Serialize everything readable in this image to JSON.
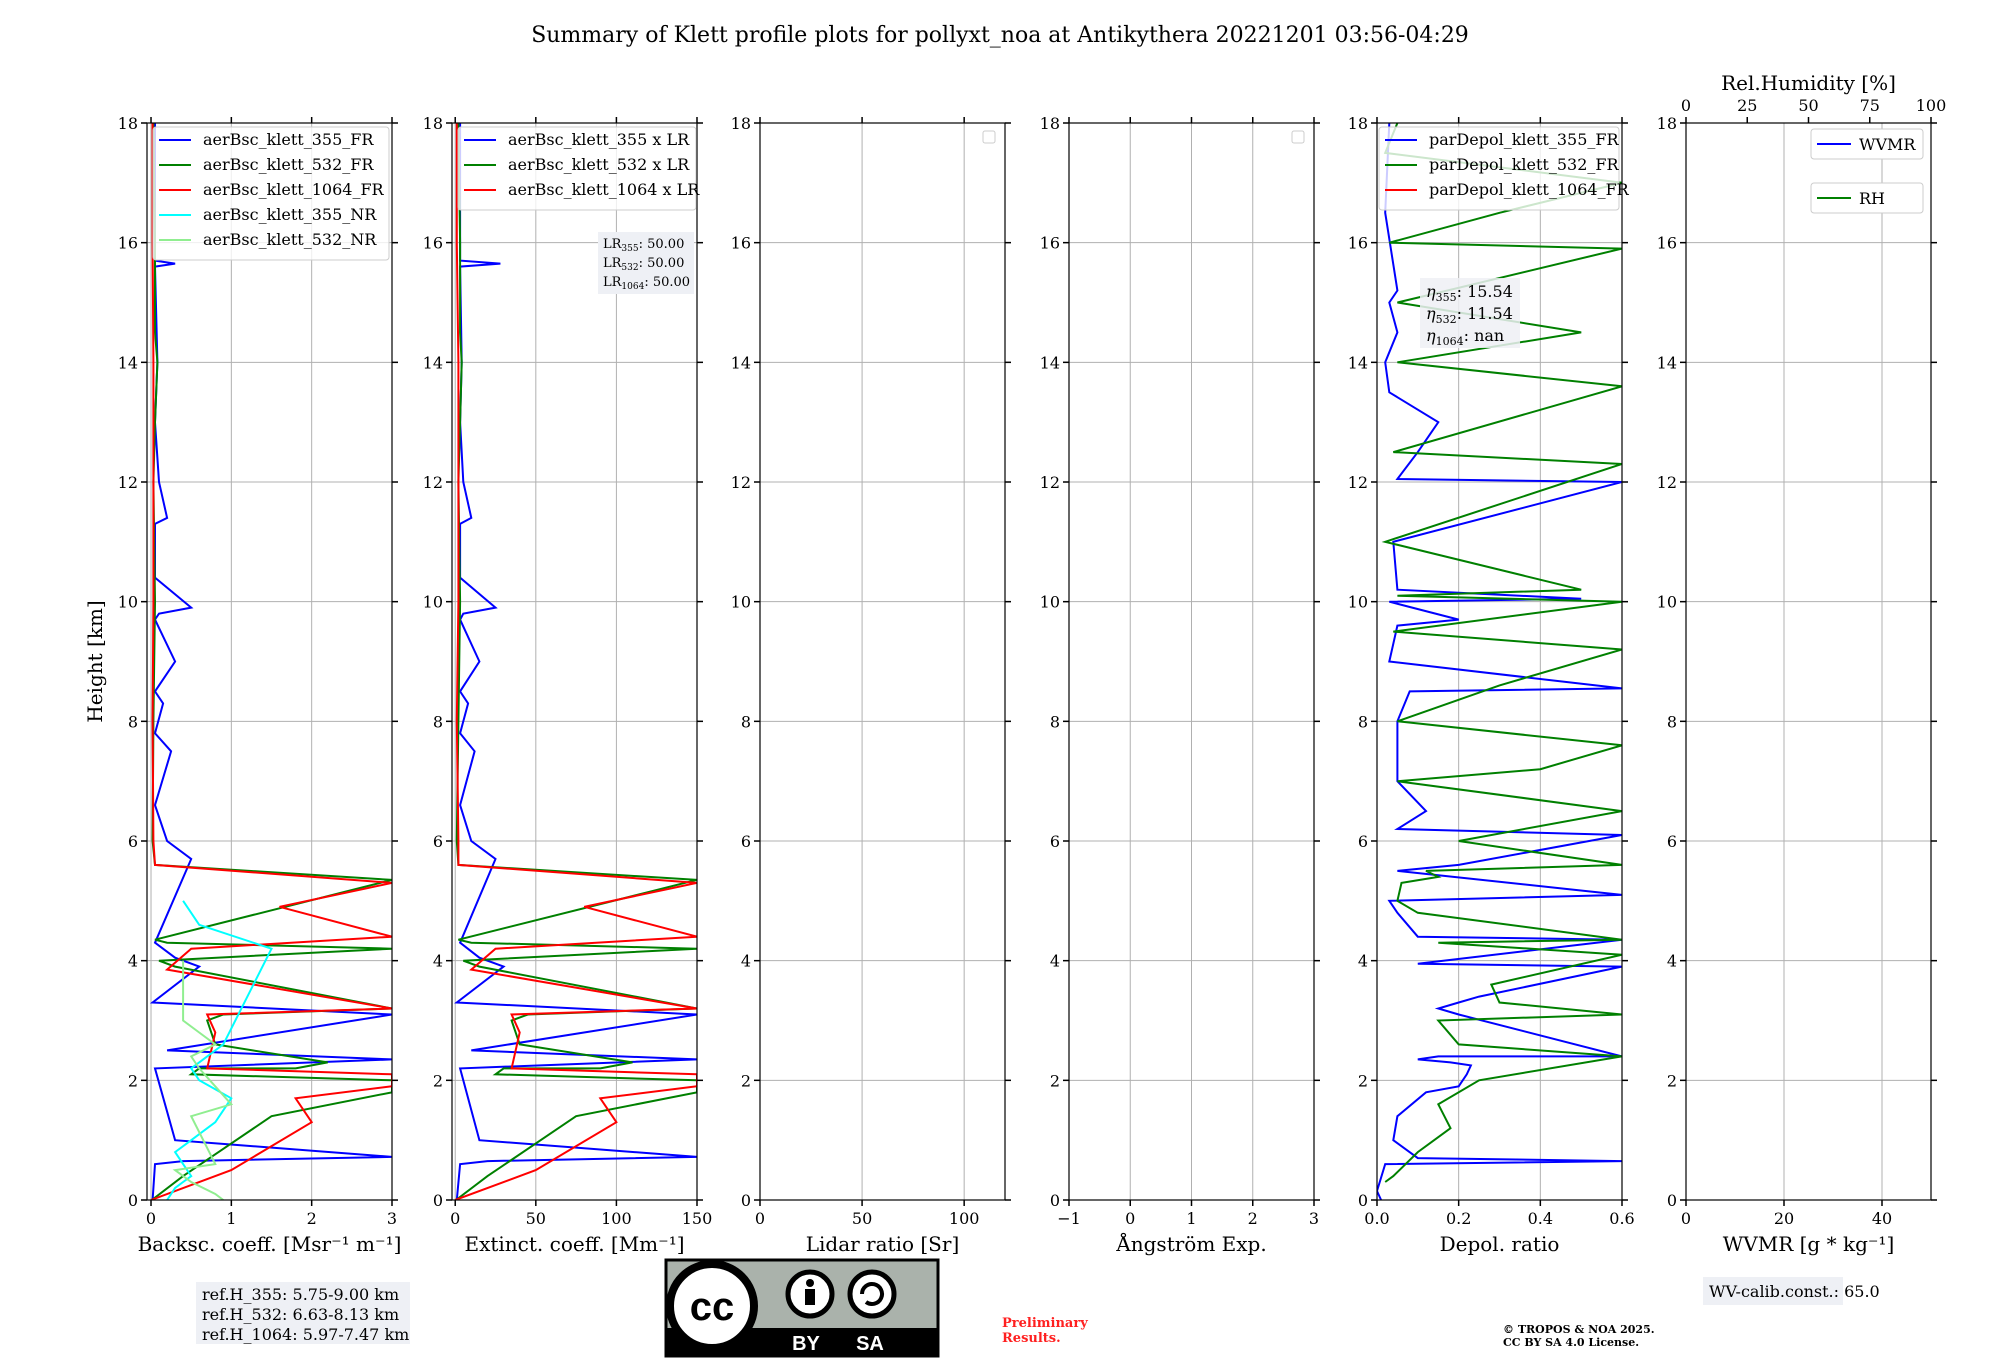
{
  "figure": {
    "title": "Summary of Klett profile plots for pollyxt_noa at Antikythera 20221201 03:56-04:29"
  },
  "chart_data": [
    {
      "id": "backscatter",
      "type": "line",
      "xlabel": "Backsc. coeff. [Msr⁻¹ m⁻¹]",
      "ylabel": "Height [km]",
      "xlim": [
        -0.05,
        3
      ],
      "ylim": [
        0,
        18
      ],
      "xticks": [
        0,
        1,
        2,
        3
      ],
      "yticks": [
        0,
        2,
        4,
        6,
        8,
        10,
        12,
        14,
        16,
        18
      ],
      "grid": true,
      "legend_position": "top-left",
      "series": [
        {
          "name": "aerBsc_klett_355_FR",
          "color": "#0000ff",
          "x": [
            0.02,
            0.05,
            0.4,
            3,
            0.3,
            0.05,
            3,
            0.2,
            3,
            0.02,
            0.6,
            0.3,
            0.05,
            0.5,
            0.2,
            0.05,
            0.25,
            0.05,
            0.15,
            0.05,
            0.3,
            0.05,
            0.1,
            0.5,
            0.05,
            0.05,
            0.2,
            0.1,
            0.05,
            0.08,
            0.05,
            0.3,
            0.05,
            0.05,
            0.05,
            0.05,
            0.05
          ],
          "y": [
            0.0,
            0.6,
            0.65,
            0.72,
            1.0,
            2.2,
            2.35,
            2.5,
            3.1,
            3.3,
            3.9,
            4.05,
            4.3,
            5.7,
            6.0,
            6.6,
            7.5,
            7.8,
            8.3,
            8.5,
            9.0,
            9.7,
            9.8,
            9.9,
            10.4,
            11.3,
            11.4,
            12.0,
            13.0,
            14.0,
            15.6,
            15.65,
            15.7,
            16.5,
            17.0,
            17.5,
            18.0
          ]
        },
        {
          "name": "aerBsc_klett_532_FR",
          "color": "#008000",
          "x": [
            0.01,
            0.4,
            1.5,
            3,
            3,
            0.5,
            0.6,
            1.8,
            2.2,
            0.8,
            0.7,
            0.9,
            3,
            0.3,
            0.1,
            3,
            0.2,
            0.05,
            3,
            0.05,
            0.02,
            0.03,
            0.05,
            0.03,
            0.05,
            0.08,
            0.05,
            0.05,
            0.03
          ],
          "y": [
            0.0,
            0.4,
            1.4,
            1.8,
            2.0,
            2.1,
            2.2,
            2.2,
            2.3,
            2.6,
            3.0,
            3.1,
            3.2,
            3.9,
            4.0,
            4.2,
            4.3,
            4.35,
            5.35,
            5.6,
            6.0,
            8.0,
            10.0,
            12.0,
            13.0,
            14.0,
            14.5,
            16.0,
            18.0
          ]
        },
        {
          "name": "aerBsc_klett_1064_FR",
          "color": "#ff0000",
          "x": [
            0.0,
            1.0,
            2.0,
            1.8,
            3,
            3,
            0.7,
            0.8,
            0.7,
            3,
            0.2,
            0.5,
            3,
            1.6,
            3,
            0.05,
            0.03,
            0.02,
            0.03,
            0.03,
            0.02,
            0.02
          ],
          "y": [
            0.0,
            0.5,
            1.3,
            1.7,
            1.9,
            2.1,
            2.2,
            2.8,
            3.1,
            3.2,
            3.85,
            4.2,
            4.4,
            4.9,
            5.3,
            5.6,
            6.0,
            8.0,
            10.0,
            14.0,
            16.0,
            18.0
          ]
        },
        {
          "name": "aerBsc_klett_355_NR",
          "color": "#00ffff",
          "x": [
            0.2,
            0.3,
            0.4,
            0.5,
            0.4,
            0.3,
            0.5,
            0.6,
            0.8,
            0.9,
            1.0,
            0.6,
            0.5,
            0.9,
            1.5,
            0.6,
            0.4
          ],
          "y": [
            0.0,
            0.2,
            0.3,
            0.4,
            0.6,
            0.8,
            1.0,
            1.1,
            1.3,
            1.5,
            1.7,
            2.0,
            2.2,
            2.6,
            4.2,
            4.6,
            5.0
          ]
        },
        {
          "name": "aerBsc_klett_532_NR",
          "color": "#90ee90",
          "x": [
            0.9,
            0.8,
            0.5,
            0.3,
            0.8,
            0.5,
            1.0,
            0.6,
            0.5,
            0.8,
            0.6,
            0.4,
            0.4
          ],
          "y": [
            0.0,
            0.1,
            0.3,
            0.5,
            0.6,
            1.4,
            1.6,
            2.2,
            2.4,
            2.6,
            2.8,
            3.0,
            4.0
          ]
        }
      ],
      "annotation": [
        "ref.H_355: 5.75-9.00 km",
        "ref.H_532: 6.63-8.13 km",
        "ref.H_1064: 5.97-7.47 km"
      ]
    },
    {
      "id": "extinction",
      "type": "line",
      "xlabel": "Extinct. coeff. [Mm⁻¹]",
      "xlim": [
        -2,
        150
      ],
      "ylim": [
        0,
        18
      ],
      "xticks": [
        0,
        50,
        100,
        150
      ],
      "yticks": [
        0,
        2,
        4,
        6,
        8,
        10,
        12,
        14,
        16,
        18
      ],
      "grid": true,
      "legend_position": "top-left",
      "series": [
        {
          "name": "aerBsc_klett_355 x LR",
          "color": "#0000ff",
          "x": [
            1,
            3,
            20,
            150,
            15,
            3,
            150,
            10,
            150,
            1,
            30,
            15,
            3,
            25,
            10,
            3,
            12,
            3,
            8,
            3,
            15,
            3,
            5,
            25,
            3,
            3,
            10,
            5,
            3,
            4,
            3,
            28,
            3,
            3,
            3,
            3,
            3
          ],
          "y": [
            0.0,
            0.6,
            0.65,
            0.72,
            1.0,
            2.2,
            2.35,
            2.5,
            3.1,
            3.3,
            3.9,
            4.05,
            4.3,
            5.7,
            6.0,
            6.6,
            7.5,
            7.8,
            8.3,
            8.5,
            9.0,
            9.7,
            9.8,
            9.9,
            10.4,
            11.3,
            11.4,
            12.0,
            13.0,
            14.0,
            15.6,
            15.65,
            15.7,
            16.5,
            17.0,
            17.5,
            18.0
          ]
        },
        {
          "name": "aerBsc_klett_532 x LR",
          "color": "#008000",
          "x": [
            0.5,
            20,
            75,
            150,
            150,
            25,
            30,
            90,
            110,
            40,
            35,
            45,
            150,
            15,
            5,
            150,
            10,
            2,
            150,
            2,
            1,
            2,
            3,
            2,
            3,
            4,
            3,
            3,
            2
          ],
          "y": [
            0.0,
            0.4,
            1.4,
            1.8,
            2.0,
            2.1,
            2.2,
            2.2,
            2.3,
            2.6,
            3.0,
            3.1,
            3.2,
            3.9,
            4.0,
            4.2,
            4.3,
            4.35,
            5.35,
            5.6,
            6.0,
            8.0,
            10.0,
            12.0,
            13.0,
            14.0,
            14.5,
            16.0,
            18.0
          ]
        },
        {
          "name": "aerBsc_klett_1064 x LR",
          "color": "#ff0000",
          "x": [
            0,
            50,
            100,
            90,
            150,
            150,
            35,
            40,
            35,
            150,
            10,
            25,
            150,
            80,
            150,
            2,
            2,
            1,
            2,
            2,
            1,
            1
          ],
          "y": [
            0.0,
            0.5,
            1.3,
            1.7,
            1.9,
            2.1,
            2.2,
            2.8,
            3.1,
            3.2,
            3.85,
            4.2,
            4.4,
            4.9,
            5.3,
            5.6,
            6.0,
            8.0,
            10.0,
            14.0,
            16.0,
            18.0
          ]
        }
      ],
      "annotation": [
        {
          "label": "LR",
          "sub": "355",
          "value": ": 50.00"
        },
        {
          "label": "LR",
          "sub": "532",
          "value": ": 50.00"
        },
        {
          "label": "LR",
          "sub": "1064",
          "value": ": 50.00"
        }
      ]
    },
    {
      "id": "lidar_ratio",
      "type": "line",
      "xlabel": "Lidar ratio [Sr]",
      "xlim": [
        0,
        120
      ],
      "ylim": [
        0,
        18
      ],
      "xticks": [
        0,
        50,
        100
      ],
      "yticks": [
        0,
        2,
        4,
        6,
        8,
        10,
        12,
        14,
        16,
        18
      ],
      "grid": true,
      "legend_position": "top-right",
      "series": []
    },
    {
      "id": "angstrom",
      "type": "line",
      "xlabel": "Ångström Exp.",
      "xlim": [
        -1,
        3
      ],
      "ylim": [
        0,
        18
      ],
      "xticks": [
        -1,
        0,
        1,
        2,
        3
      ],
      "yticks": [
        0,
        2,
        4,
        6,
        8,
        10,
        12,
        14,
        16,
        18
      ],
      "grid": true,
      "legend_position": "top-right",
      "series": []
    },
    {
      "id": "depol",
      "type": "line",
      "xlabel": "Depol. ratio",
      "xlim": [
        0,
        0.6
      ],
      "ylim": [
        0,
        18
      ],
      "xticks": [
        0.0,
        0.2,
        0.4,
        0.6
      ],
      "yticks": [
        0,
        2,
        4,
        6,
        8,
        10,
        12,
        14,
        16,
        18
      ],
      "grid": true,
      "legend_position": "top-right",
      "series": [
        {
          "name": "parDepol_klett_355_FR",
          "color": "#0000ff",
          "x": [
            0.01,
            0.0,
            0.02,
            0.6,
            0.1,
            0.04,
            0.05,
            0.12,
            0.2,
            0.22,
            0.23,
            0.18,
            0.1,
            0.15,
            0.6,
            0.2,
            0.15,
            0.2,
            0.25,
            0.6,
            0.1,
            0.6,
            0.1,
            0.05,
            0.03,
            0.6,
            0.05,
            0.2,
            0.6,
            0.05,
            0.12,
            0.05,
            0.05,
            0.05,
            0.08,
            0.6,
            0.03,
            0.05,
            0.2,
            0.03,
            0.5,
            0.05,
            0.04,
            0.6,
            0.05,
            0.1,
            0.15,
            0.03,
            0.02,
            0.05,
            0.03,
            0.05,
            0.02,
            0.03
          ],
          "y": [
            0.0,
            0.15,
            0.6,
            0.65,
            0.7,
            1.0,
            1.4,
            1.8,
            1.9,
            2.1,
            2.25,
            2.3,
            2.35,
            2.4,
            2.4,
            3.1,
            3.2,
            3.3,
            3.4,
            3.9,
            3.95,
            4.35,
            4.4,
            4.8,
            5.0,
            5.1,
            5.5,
            5.6,
            6.1,
            6.2,
            6.5,
            7.0,
            7.5,
            8.0,
            8.5,
            8.55,
            9.0,
            9.6,
            9.7,
            10.0,
            10.05,
            10.2,
            11.0,
            12.0,
            12.05,
            12.5,
            13.0,
            13.5,
            14.0,
            14.5,
            15.0,
            15.2,
            16.5,
            18.0
          ]
        },
        {
          "name": "parDepol_klett_532_FR",
          "color": "#008000",
          "x": [
            0.02,
            0.04,
            0.1,
            0.18,
            0.15,
            0.25,
            0.6,
            0.2,
            0.15,
            0.6,
            0.3,
            0.28,
            0.6,
            0.15,
            0.6,
            0.1,
            0.05,
            0.06,
            0.15,
            0.12,
            0.6,
            0.2,
            0.6,
            0.05,
            0.4,
            0.6,
            0.05,
            0.3,
            0.6,
            0.04,
            0.6,
            0.05,
            0.5,
            0.02,
            0.6,
            0.04,
            0.6,
            0.05,
            0.5,
            0.05,
            0.6,
            0.03,
            0.3,
            0.6,
            0.02,
            0.05
          ],
          "y": [
            0.3,
            0.4,
            0.8,
            1.2,
            1.6,
            2.0,
            2.4,
            2.6,
            3.0,
            3.1,
            3.3,
            3.6,
            4.1,
            4.3,
            4.35,
            4.8,
            5.0,
            5.3,
            5.4,
            5.5,
            5.6,
            6.0,
            6.5,
            7.0,
            7.2,
            7.6,
            8.0,
            8.6,
            9.2,
            9.5,
            10.0,
            10.1,
            10.2,
            11.0,
            12.3,
            12.5,
            13.6,
            14.0,
            14.5,
            15.0,
            15.9,
            16.0,
            16.5,
            17.0,
            17.5,
            18.0
          ]
        },
        {
          "name": "parDepol_klett_1064_FR",
          "color": "#ff0000",
          "x": [],
          "y": []
        }
      ],
      "annotation": [
        {
          "label": "η",
          "sub": "355",
          "value": ": 15.54"
        },
        {
          "label": "η",
          "sub": "532",
          "value": ": 11.54"
        },
        {
          "label": "η",
          "sub": "1064",
          "value": ": nan"
        }
      ]
    },
    {
      "id": "wvmr",
      "type": "line",
      "xlabel": "WVMR [g * kg⁻¹]",
      "toplabel": "Rel.Humidity [%]",
      "xlim": [
        0,
        50
      ],
      "xlim_top": [
        0,
        100
      ],
      "ylim": [
        0,
        18
      ],
      "xticks": [
        0,
        20,
        40
      ],
      "xticks_top": [
        0,
        25,
        50,
        75,
        100
      ],
      "yticks": [
        0,
        2,
        4,
        6,
        8,
        10,
        12,
        14,
        16,
        18
      ],
      "grid": true,
      "legend_position": "top-right",
      "series": [
        {
          "name": "WVMR",
          "color": "#0000ff",
          "x": [],
          "y": []
        },
        {
          "name": "RH",
          "color": "#008000",
          "x": [],
          "y": []
        }
      ],
      "annotation": [
        "WV-calib.const.: 65.0"
      ]
    }
  ],
  "footer": {
    "cc_logo_text": "cc",
    "cc_by": "BY",
    "cc_sa": "SA",
    "preliminary_line1": "Preliminary",
    "preliminary_line2": "Results.",
    "copyright_line1": "© TROPOS & NOA 2025.",
    "copyright_line2": "CC BY SA 4.0 License."
  }
}
